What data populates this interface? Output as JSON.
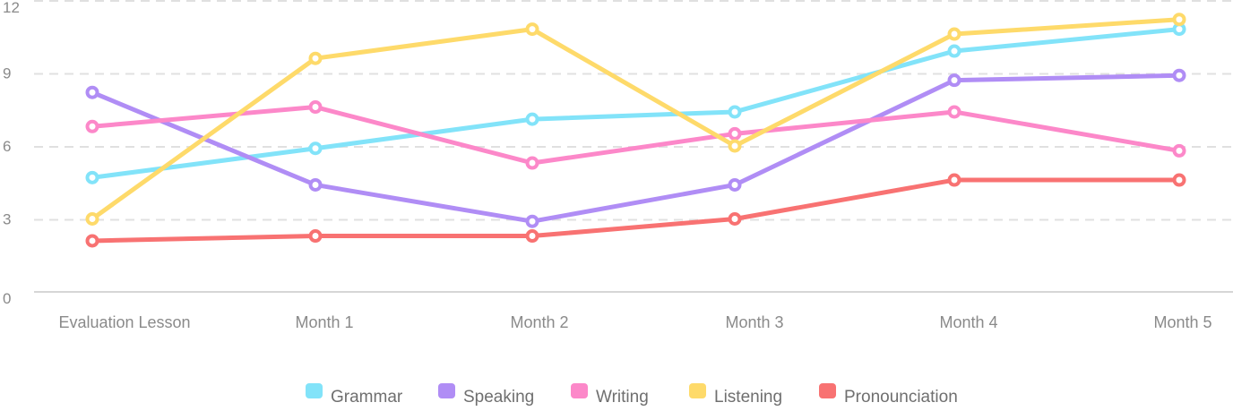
{
  "chart_data": {
    "type": "line",
    "categories": [
      "Evaluation Lesson",
      "Month 1",
      "Month 2",
      "Month 3",
      "Month 4",
      "Month 5"
    ],
    "ylim": [
      0,
      12
    ],
    "yticks": [
      "0",
      "3",
      "6",
      "9",
      "12"
    ],
    "grid": true,
    "legend_position": "bottom",
    "series": [
      {
        "name": "Grammar",
        "color": "#82E3F9",
        "values": [
          4.7,
          5.9,
          7.1,
          7.4,
          9.9,
          10.8
        ]
      },
      {
        "name": "Speaking",
        "color": "#B08DF5",
        "values": [
          8.2,
          4.4,
          2.9,
          4.4,
          8.7,
          8.9
        ]
      },
      {
        "name": "Writing",
        "color": "#FC88C9",
        "values": [
          6.8,
          7.6,
          5.3,
          6.5,
          7.4,
          5.8
        ]
      },
      {
        "name": "Listening",
        "color": "#FEDA6A",
        "values": [
          3.0,
          9.6,
          10.8,
          6.0,
          10.6,
          11.2
        ]
      },
      {
        "name": "Pronounciation",
        "color": "#F87272",
        "values": [
          2.1,
          2.3,
          2.3,
          3.0,
          4.6,
          4.6
        ]
      }
    ]
  }
}
